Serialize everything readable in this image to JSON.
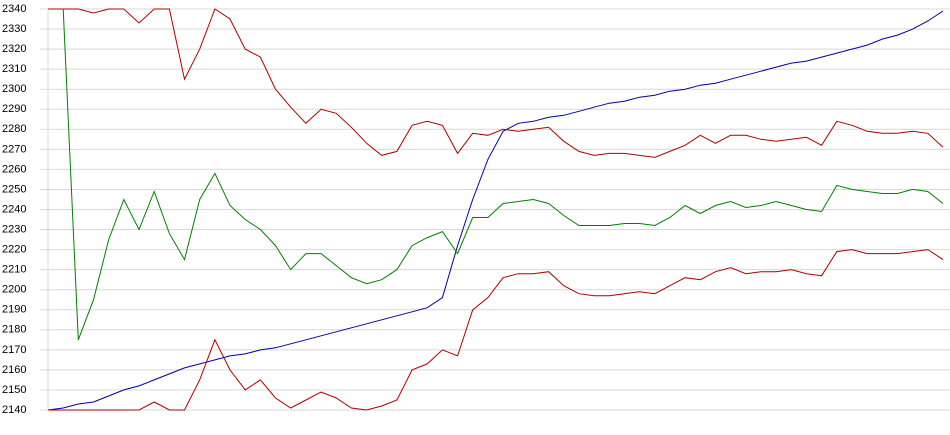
{
  "chart_data": {
    "type": "line",
    "categories": [
      null,
      null,
      null,
      null,
      null,
      null,
      null,
      null,
      null,
      null,
      null,
      null,
      null,
      null,
      null,
      null,
      null,
      null,
      null,
      null,
      null,
      null,
      null,
      null,
      null,
      null,
      null,
      null,
      null,
      null,
      null,
      null,
      null,
      null,
      null,
      null,
      null,
      null,
      null,
      null,
      null,
      null,
      null,
      null,
      null,
      null,
      null,
      null,
      null,
      null,
      null,
      null,
      null,
      null,
      null,
      null,
      null,
      null,
      null,
      null
    ],
    "series": [
      {
        "color": "#0000aa",
        "values": [
          2140,
          2141,
          2143,
          2144,
          2147,
          2150,
          2152,
          2155,
          2158,
          2161,
          2163,
          2165,
          2167,
          2168,
          2170,
          2171,
          2173,
          2175,
          2177,
          2179,
          2181,
          2183,
          2185,
          2187,
          2189,
          2191,
          2196,
          2222,
          2245,
          2265,
          2279,
          2283,
          2284,
          2286,
          2287,
          2289,
          2291,
          2293,
          2294,
          2296,
          2297,
          2299,
          2300,
          2302,
          2303,
          2305,
          2307,
          2309,
          2311,
          2313,
          2314,
          2316,
          2318,
          2320,
          2322,
          2325,
          2327,
          2330,
          2334,
          2339
        ]
      },
      {
        "color": "#b00000",
        "values": [
          2340,
          2340,
          2340,
          2338,
          2340,
          2340,
          2333,
          2340,
          2340,
          2305,
          2320,
          2340,
          2335,
          2320,
          2316,
          2300,
          2291,
          2283,
          2290,
          2288,
          2281,
          2273,
          2267,
          2269,
          2282,
          2284,
          2282,
          2268,
          2278,
          2277,
          2280,
          2279,
          2280,
          2281,
          2274,
          2269,
          2267,
          2268,
          2268,
          2267,
          2266,
          2269,
          2272,
          2277,
          2273,
          2277,
          2277,
          2275,
          2274,
          2275,
          2276,
          2272,
          2284,
          2282,
          2279,
          2278,
          2278,
          2279,
          2278,
          2271
        ]
      },
      {
        "color": "#008000",
        "values": [
          null,
          2340,
          2175,
          2195,
          2225,
          2245,
          2230,
          2249,
          2228,
          2215,
          2245,
          2258,
          2242,
          2235,
          2230,
          2222,
          2210,
          2218,
          2218,
          2212,
          2206,
          2203,
          2205,
          2210,
          2222,
          2226,
          2229,
          2218,
          2236,
          2236,
          2243,
          2244,
          2245,
          2243,
          2237,
          2232,
          2232,
          2232,
          2233,
          2233,
          2232,
          2236,
          2242,
          2238,
          2242,
          2244,
          2241,
          2242,
          2244,
          2242,
          2240,
          2239,
          2252,
          2250,
          2249,
          2248,
          2248,
          2250,
          2249,
          2243
        ]
      },
      {
        "color": "#b00000",
        "values": [
          2140,
          2140,
          2140,
          2140,
          2140,
          2140,
          2140,
          2144,
          2140,
          2140,
          2155,
          2175,
          2160,
          2150,
          2155,
          2146,
          2141,
          2145,
          2149,
          2146,
          2141,
          2140,
          2142,
          2145,
          2160,
          2163,
          2170,
          2167,
          2190,
          2196,
          2206,
          2208,
          2208,
          2209,
          2202,
          2198,
          2197,
          2197,
          2198,
          2199,
          2198,
          2202,
          2206,
          2205,
          2209,
          2211,
          2208,
          2209,
          2209,
          2210,
          2208,
          2207,
          2219,
          2220,
          2218,
          2218,
          2218,
          2219,
          2220,
          2215
        ]
      }
    ],
    "ylim": [
      2140,
      2340
    ],
    "yticks": [
      2140,
      2150,
      2160,
      2170,
      2180,
      2190,
      2200,
      2210,
      2220,
      2230,
      2240,
      2250,
      2260,
      2270,
      2280,
      2290,
      2300,
      2310,
      2320,
      2330,
      2340
    ],
    "grid": true
  }
}
